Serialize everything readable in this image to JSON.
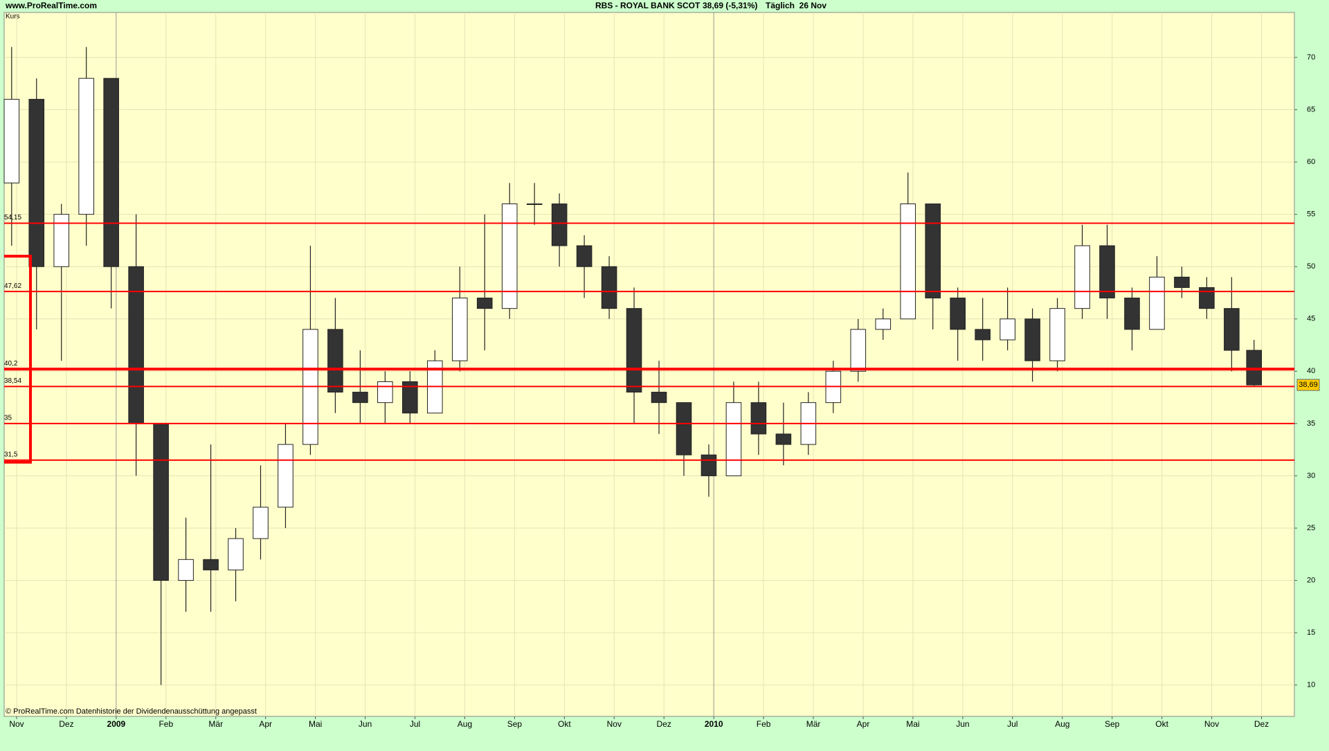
{
  "chart_data": {
    "type": "candlestick",
    "source": "www.ProRealTime.com",
    "title": "RBS - ROYAL BANK SCOT",
    "subtitle": "38,69 (-5,31%)",
    "period": "Täglich  26 Nov",
    "y_label": "Kurs",
    "footnote": "© ProRealTime.com  Datenhistorie der Dividendenausschüttung angepasst",
    "x": [
      -0.1,
      0.4,
      0.9,
      1.4,
      1.9,
      2.4,
      2.9,
      3.4,
      3.9,
      4.4,
      4.9,
      5.4,
      5.9,
      6.4,
      6.9,
      7.4,
      7.9,
      8.4,
      8.9,
      9.4,
      9.9,
      10.4,
      10.9,
      11.4,
      11.9,
      12.4,
      12.9,
      13.4,
      13.9,
      14.4,
      14.9,
      15.4,
      15.9,
      16.4,
      16.9,
      17.4,
      17.9,
      18.4,
      18.9,
      19.4,
      19.9,
      20.4,
      20.9,
      21.4,
      21.9,
      22.4,
      22.9,
      23.4,
      23.9,
      24.4,
      24.85
    ],
    "open": [
      58,
      66,
      50,
      55,
      68,
      50,
      35,
      20,
      22,
      21,
      24,
      27,
      33,
      44,
      38,
      37,
      39,
      36,
      41,
      47,
      46,
      56,
      56,
      52,
      50,
      46,
      38,
      37,
      32,
      30,
      37,
      34,
      33,
      37,
      40,
      44,
      45,
      56,
      47,
      44,
      43,
      45,
      41,
      46,
      52,
      47,
      44,
      49,
      48,
      46,
      42
    ],
    "high": [
      71,
      68,
      56,
      71,
      68,
      55,
      35,
      26,
      33,
      25,
      31,
      35,
      52,
      47,
      42,
      40,
      40,
      42,
      50,
      55,
      58,
      58,
      57,
      53,
      51,
      48,
      41,
      37,
      33,
      39,
      39,
      37,
      38,
      41,
      45,
      46,
      59,
      56,
      48,
      47,
      48,
      46,
      47,
      54,
      54,
      48,
      51,
      50,
      49,
      49,
      43
    ],
    "low": [
      52,
      44,
      41,
      52,
      46,
      30,
      10,
      17,
      17,
      18,
      22,
      25,
      32,
      36,
      35,
      35,
      35,
      36,
      40,
      42,
      45,
      54,
      50,
      47,
      45,
      35,
      34,
      30,
      28,
      30,
      32,
      31,
      32,
      36,
      39,
      43,
      45,
      44,
      41,
      41,
      42,
      39,
      40,
      45,
      45,
      42,
      44,
      47,
      45,
      40,
      38.5
    ],
    "close": [
      66,
      50,
      55,
      68,
      50,
      35,
      20,
      22,
      21,
      24,
      27,
      33,
      44,
      38,
      37,
      39,
      36,
      41,
      47,
      46,
      56,
      56,
      52,
      50,
      46,
      38,
      37,
      32,
      30,
      37,
      34,
      33,
      37,
      40,
      44,
      45,
      56,
      47,
      44,
      43,
      45,
      41,
      46,
      52,
      47,
      44,
      49,
      48,
      46,
      42,
      38.69
    ],
    "up_color": "#ffffff",
    "down_color": "#333333",
    "xlim": [
      -0.25,
      25.66
    ],
    "xticks": [
      {
        "value": 0,
        "label": "Nov"
      },
      {
        "value": 1,
        "label": "Dez"
      },
      {
        "value": 2,
        "label": "2009"
      },
      {
        "value": 3,
        "label": "Feb"
      },
      {
        "value": 4,
        "label": "Mär"
      },
      {
        "value": 5,
        "label": "Apr"
      },
      {
        "value": 6,
        "label": "Mai"
      },
      {
        "value": 7,
        "label": "Jun"
      },
      {
        "value": 8,
        "label": "Jul"
      },
      {
        "value": 9,
        "label": "Aug"
      },
      {
        "value": 10,
        "label": "Sep"
      },
      {
        "value": 11,
        "label": "Okt"
      },
      {
        "value": 12,
        "label": "Nov"
      },
      {
        "value": 13,
        "label": "Dez"
      },
      {
        "value": 14,
        "label": "2010"
      },
      {
        "value": 15,
        "label": "Feb"
      },
      {
        "value": 16,
        "label": "Mär"
      },
      {
        "value": 17,
        "label": "Apr"
      },
      {
        "value": 18,
        "label": "Mai"
      },
      {
        "value": 19,
        "label": "Jun"
      },
      {
        "value": 20,
        "label": "Jul"
      },
      {
        "value": 21,
        "label": "Aug"
      },
      {
        "value": 22,
        "label": "Sep"
      },
      {
        "value": 23,
        "label": "Okt"
      },
      {
        "value": 24,
        "label": "Nov"
      },
      {
        "value": 25,
        "label": "Dez"
      }
    ],
    "ylim": [
      7,
      74.3
    ],
    "yticks": [
      10,
      15,
      20,
      25,
      30,
      35,
      40,
      45,
      50,
      55,
      60,
      65,
      70
    ],
    "grid": true,
    "levels": [
      {
        "value": 54.15,
        "label": "54,15",
        "width": 2
      },
      {
        "value": 47.62,
        "label": "47,62",
        "width": 2
      },
      {
        "value": 40.2,
        "label": "40,2",
        "width": 4
      },
      {
        "value": 38.54,
        "label": "38,54",
        "width": 2
      },
      {
        "value": 35,
        "label": "35",
        "width": 2
      },
      {
        "value": 31.5,
        "label": "31,5",
        "width": 2
      }
    ],
    "level_color": "#ff0000",
    "zone": [
      31.3,
      51
    ],
    "last_price": {
      "value": 38.69,
      "label": "38,69"
    }
  }
}
